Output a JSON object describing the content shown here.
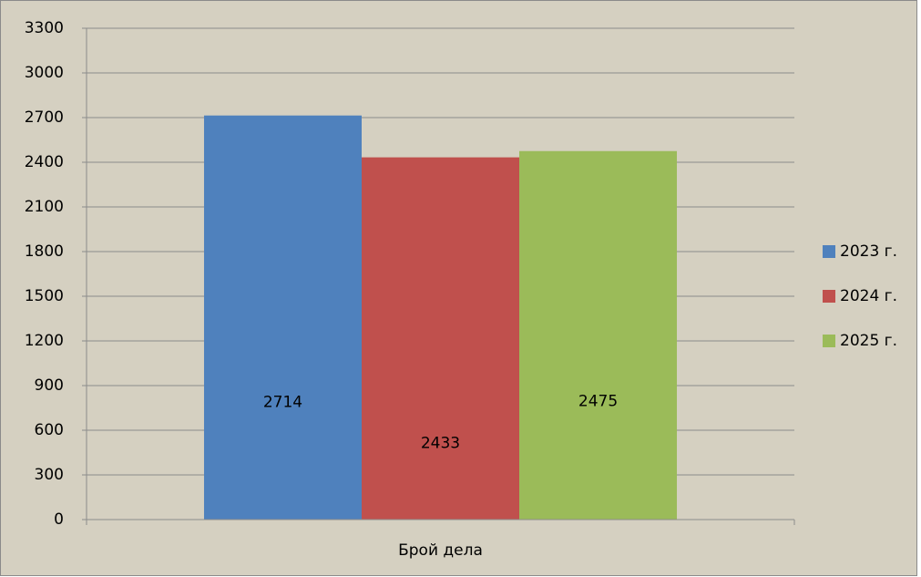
{
  "chart_data": {
    "type": "bar",
    "categories": [
      "Брой дела"
    ],
    "series": [
      {
        "name": "2023 г.",
        "color": "#4f81bd",
        "values": [
          2714
        ]
      },
      {
        "name": "2024 г.",
        "color": "#c0504d",
        "values": [
          2433
        ]
      },
      {
        "name": "2025 г.",
        "color": "#9bbb59",
        "values": [
          2475
        ]
      }
    ],
    "ylim": [
      0,
      3300
    ],
    "yticks": [
      0,
      300,
      600,
      900,
      1200,
      1500,
      1800,
      2100,
      2400,
      2700,
      3000,
      3300
    ],
    "grid": true,
    "legend": "right"
  }
}
